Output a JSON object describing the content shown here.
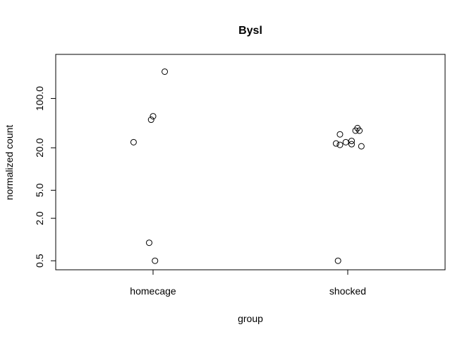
{
  "chart_data": {
    "type": "scatter",
    "title": "Bysl",
    "xlabel": "group",
    "ylabel": "normalized count",
    "categories": [
      "homecage",
      "shocked"
    ],
    "y_scale": "log",
    "yticks": [
      0.5,
      2.0,
      5.0,
      20.0,
      100.0
    ],
    "ytick_labels": [
      "0.5",
      "2.0",
      "5.0",
      "20.0",
      "100.0"
    ],
    "ylim": [
      0.48,
      320
    ],
    "grid": false,
    "legend": "none",
    "points": [
      {
        "group": "homecage",
        "jitter": 0.06,
        "y": 240
      },
      {
        "group": "homecage",
        "jitter": 0.0,
        "y": 56
      },
      {
        "group": "homecage",
        "jitter": -0.01,
        "y": 50
      },
      {
        "group": "homecage",
        "jitter": -0.1,
        "y": 24
      },
      {
        "group": "homecage",
        "jitter": -0.02,
        "y": 0.9
      },
      {
        "group": "homecage",
        "jitter": 0.01,
        "y": 0.5
      },
      {
        "group": "shocked",
        "jitter": 0.05,
        "y": 38
      },
      {
        "group": "shocked",
        "jitter": 0.04,
        "y": 35
      },
      {
        "group": "shocked",
        "jitter": 0.06,
        "y": 35
      },
      {
        "group": "shocked",
        "jitter": -0.04,
        "y": 31
      },
      {
        "group": "shocked",
        "jitter": 0.02,
        "y": 25
      },
      {
        "group": "shocked",
        "jitter": -0.01,
        "y": 24
      },
      {
        "group": "shocked",
        "jitter": -0.06,
        "y": 23
      },
      {
        "group": "shocked",
        "jitter": 0.02,
        "y": 22.5
      },
      {
        "group": "shocked",
        "jitter": -0.04,
        "y": 22
      },
      {
        "group": "shocked",
        "jitter": 0.07,
        "y": 21
      },
      {
        "group": "shocked",
        "jitter": -0.05,
        "y": 0.5
      }
    ]
  }
}
